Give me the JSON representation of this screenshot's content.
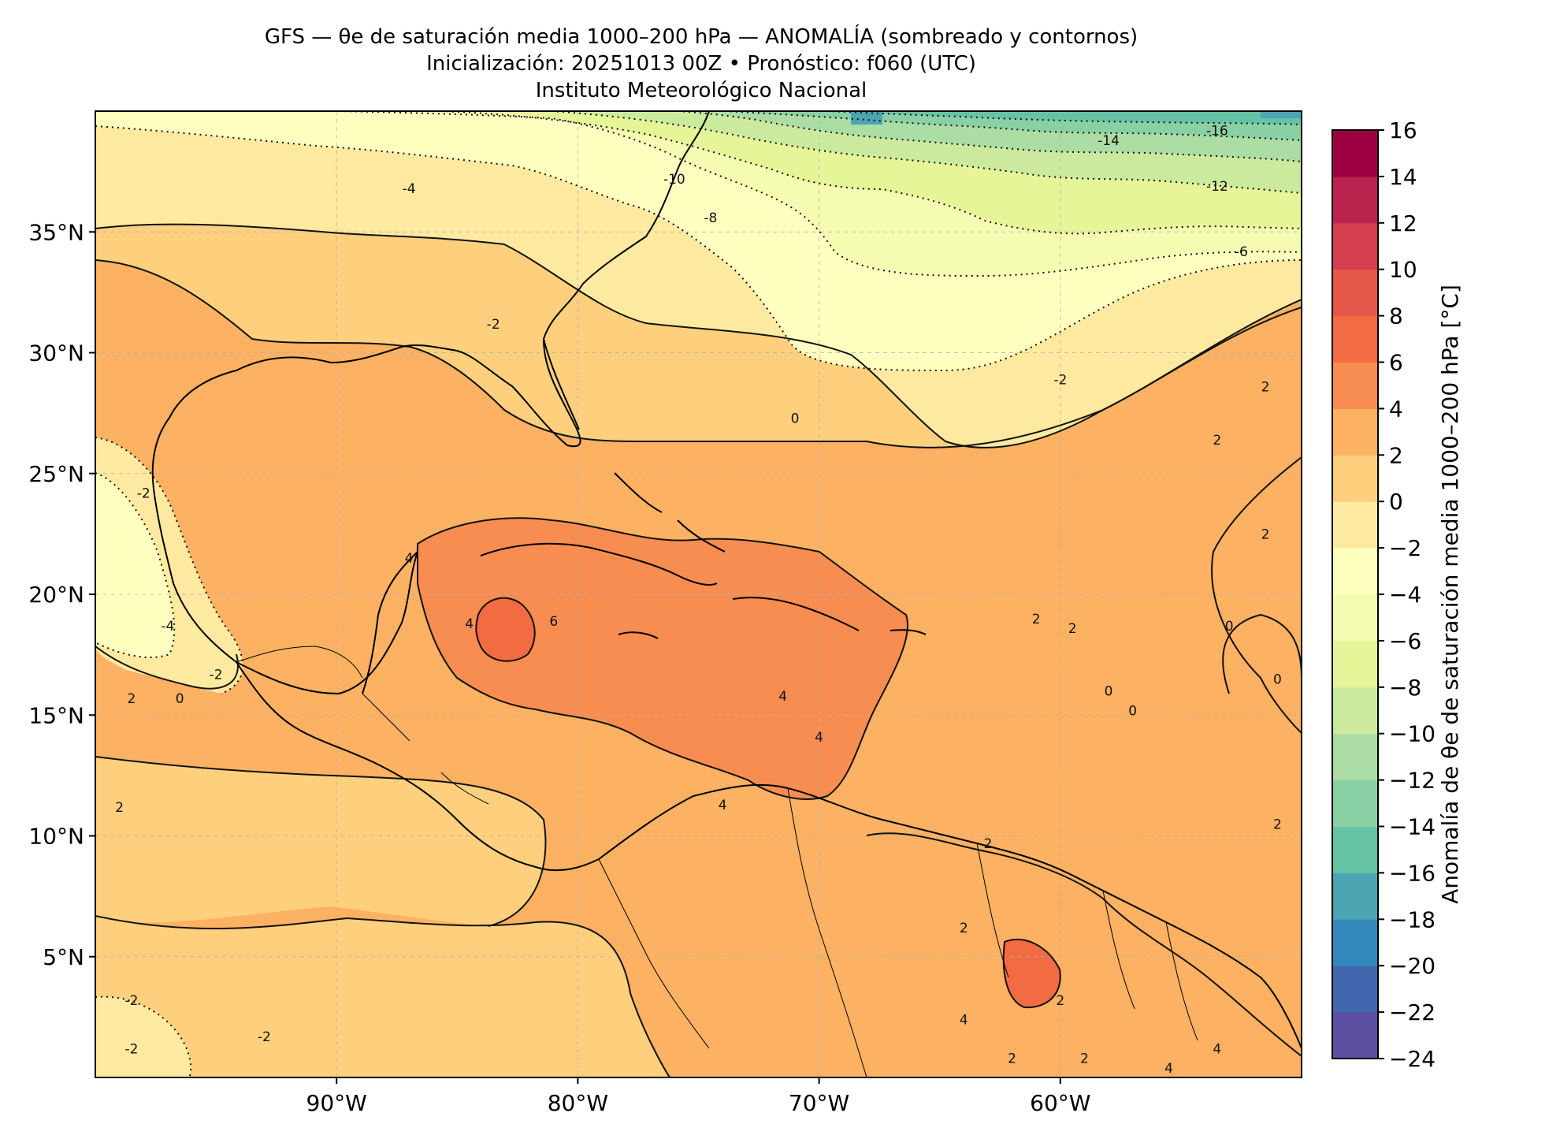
{
  "header": {
    "title_line1": "GFS — θe de saturación media 1000–200 hPa — ANOMALÍA (sombreado y contornos)",
    "title_line2": "Inicialización: 20251013 00Z   •   Pronóstico: f060 (UTC)",
    "title_line3": "Instituto Meteorológico Nacional"
  },
  "map": {
    "lon_range": [
      -100,
      -50
    ],
    "lat_range": [
      0,
      40
    ],
    "lon_ticks": [
      {
        "value": -90,
        "label": "90°W"
      },
      {
        "value": -80,
        "label": "80°W"
      },
      {
        "value": -70,
        "label": "70°W"
      },
      {
        "value": -60,
        "label": "60°W"
      }
    ],
    "lat_ticks": [
      {
        "value": 35,
        "label": "35°N"
      },
      {
        "value": 30,
        "label": "30°N"
      },
      {
        "value": 25,
        "label": "25°N"
      },
      {
        "value": 20,
        "label": "20°N"
      },
      {
        "value": 15,
        "label": "15°N"
      },
      {
        "value": 10,
        "label": "10°N"
      },
      {
        "value": 5,
        "label": "5°N"
      }
    ],
    "contour_labels": [
      {
        "text": "-16",
        "lon": -53.5,
        "lat": 39.0
      },
      {
        "text": "-14",
        "lon": -58.0,
        "lat": 38.6
      },
      {
        "text": "-12",
        "lon": -53.5,
        "lat": 36.7
      },
      {
        "text": "-10",
        "lon": -76.0,
        "lat": 37.0
      },
      {
        "text": "-8",
        "lon": -74.5,
        "lat": 35.4
      },
      {
        "text": "-6",
        "lon": -52.5,
        "lat": 34.0
      },
      {
        "text": "-4",
        "lon": -87.0,
        "lat": 36.6
      },
      {
        "text": "-2",
        "lon": -83.5,
        "lat": 31.0
      },
      {
        "text": "-2",
        "lon": -60.0,
        "lat": 28.7
      },
      {
        "text": "0",
        "lon": -71.0,
        "lat": 27.1
      },
      {
        "text": "2",
        "lon": -53.5,
        "lat": 26.2
      },
      {
        "text": "2",
        "lon": -51.5,
        "lat": 28.4
      },
      {
        "text": "2",
        "lon": -51.5,
        "lat": 22.3
      },
      {
        "text": "-2",
        "lon": -98.0,
        "lat": 24.0
      },
      {
        "text": "-4",
        "lon": -97.0,
        "lat": 18.5
      },
      {
        "text": "-2",
        "lon": -95.0,
        "lat": 16.5
      },
      {
        "text": "0",
        "lon": -96.5,
        "lat": 15.5
      },
      {
        "text": "2",
        "lon": -98.5,
        "lat": 15.5
      },
      {
        "text": "4",
        "lon": -87.0,
        "lat": 21.3
      },
      {
        "text": "4",
        "lon": -84.5,
        "lat": 18.6
      },
      {
        "text": "6",
        "lon": -81.0,
        "lat": 18.7
      },
      {
        "text": "4",
        "lon": -71.5,
        "lat": 15.6
      },
      {
        "text": "4",
        "lon": -70.0,
        "lat": 13.9
      },
      {
        "text": "4",
        "lon": -74.0,
        "lat": 11.1
      },
      {
        "text": "2",
        "lon": -99.0,
        "lat": 11.0
      },
      {
        "text": "2",
        "lon": -61.0,
        "lat": 18.8
      },
      {
        "text": "2",
        "lon": -59.5,
        "lat": 18.4
      },
      {
        "text": "0",
        "lon": -53.0,
        "lat": 18.5
      },
      {
        "text": "0",
        "lon": -58.0,
        "lat": 15.8
      },
      {
        "text": "0",
        "lon": -57.0,
        "lat": 15.0
      },
      {
        "text": "0",
        "lon": -51.0,
        "lat": 16.3
      },
      {
        "text": "2",
        "lon": -51.0,
        "lat": 10.3
      },
      {
        "text": "2",
        "lon": -63.0,
        "lat": 9.5
      },
      {
        "text": "2",
        "lon": -64.0,
        "lat": 6.0
      },
      {
        "text": "2",
        "lon": -60.0,
        "lat": 3.0
      },
      {
        "text": "4",
        "lon": -64.0,
        "lat": 2.2
      },
      {
        "text": "2",
        "lon": -62.0,
        "lat": 0.6
      },
      {
        "text": "2",
        "lon": -59.0,
        "lat": 0.6
      },
      {
        "text": "4",
        "lon": -55.5,
        "lat": 0.2
      },
      {
        "text": "4",
        "lon": -53.5,
        "lat": 1.0
      },
      {
        "text": "-2",
        "lon": -98.5,
        "lat": 3.0
      },
      {
        "text": "-2",
        "lon": -98.5,
        "lat": 1.0
      },
      {
        "text": "-2",
        "lon": -93.0,
        "lat": 1.5
      }
    ]
  },
  "colorbar": {
    "label": "Anomalía de θe de saturación media 1000–200 hPa [°C]",
    "min": -24,
    "max": 16,
    "step": 2,
    "tick_labels": [
      "16",
      "14",
      "12",
      "10",
      "8",
      "6",
      "4",
      "2",
      "0",
      "−2",
      "−4",
      "−6",
      "−8",
      "−10",
      "−12",
      "−14",
      "−16",
      "−18",
      "−20",
      "−22",
      "−24"
    ],
    "colors": [
      "#5e4fa2",
      "#4266ae",
      "#3288bd",
      "#4ba4b1",
      "#66c2a5",
      "#89d0a4",
      "#abdda4",
      "#cbea9e",
      "#e6f598",
      "#f6fbb2",
      "#ffffbf",
      "#fee9a0",
      "#fed07e",
      "#fdb163",
      "#f88d52",
      "#f36b43",
      "#e55749",
      "#d53e4f",
      "#b9234d",
      "#9e0142"
    ]
  }
}
